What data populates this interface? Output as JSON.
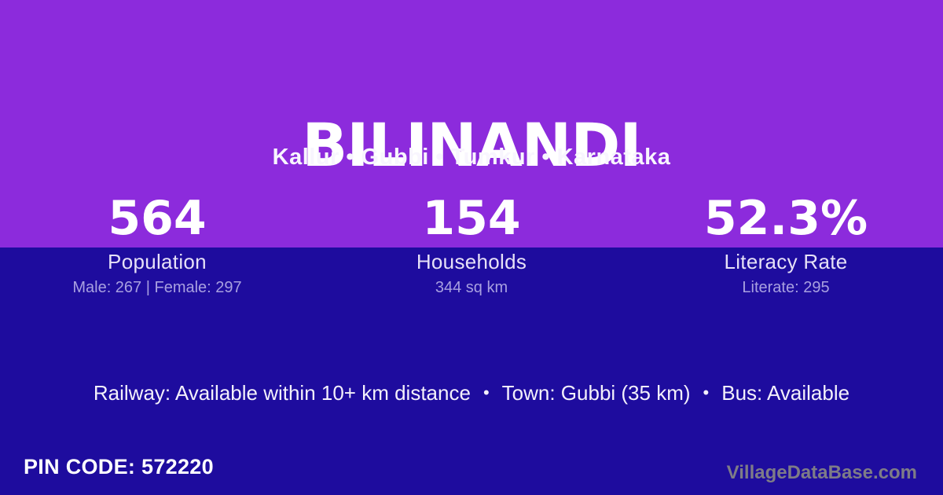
{
  "header": {
    "title": "BILINANDI",
    "breadcrumb": "Kallur • Gubbi • Tumkur • Karnataka"
  },
  "stats": [
    {
      "value": "564",
      "label": "Population",
      "detail": "Male: 267 | Female: 297"
    },
    {
      "value": "154",
      "label": "Households",
      "detail": "344 sq km"
    },
    {
      "value": "52.3%",
      "label": "Literacy Rate",
      "detail": "Literate: 295"
    }
  ],
  "transport": {
    "separator": "•",
    "items": [
      "Railway: Available within 10+ km distance",
      "Town: Gubbi (35 km)",
      "Bus: Available"
    ]
  },
  "footer": {
    "pin_code": "PIN CODE: 572220",
    "watermark": "VillageDataBase.com"
  },
  "colors": {
    "accent_purple": "#8C2BDC",
    "background_indigo": "#1E0C9E",
    "label_light": "#E6E1F7",
    "detail_lavender": "#A8A0E0",
    "watermark_gray": "#7E7C87"
  }
}
